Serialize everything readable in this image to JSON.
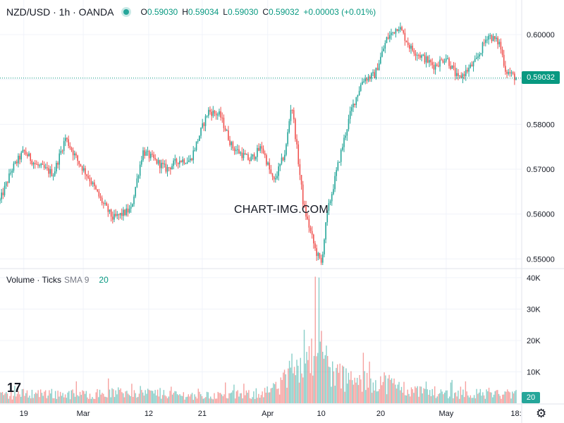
{
  "header": {
    "symbol": "NZD/USD · 1h · OANDA",
    "o_label": "O",
    "o_value": "0.59030",
    "h_label": "H",
    "h_value": "0.59034",
    "l_label": "L",
    "l_value": "0.59030",
    "c_label": "C",
    "c_value": "0.59032",
    "change": "+0.00003 (+0.01%)"
  },
  "volume_header": {
    "title": "Volume · Ticks",
    "sma_label": "SMA 9",
    "sma_value": "20"
  },
  "watermark": "CHART-IMG.COM",
  "logo": "17",
  "gear_icon": "gear-icon",
  "colors": {
    "up": "#26a69a",
    "down": "#ef5350",
    "line": "#089981",
    "grid": "#f0f3fa",
    "axis_text": "#131722"
  },
  "chart_data": [
    {
      "type": "candlestick",
      "title": "NZD/USD · 1h · OANDA",
      "ylim": [
        0.548,
        0.603
      ],
      "y_ticks": [
        {
          "value": 0.6,
          "label": "0.60000"
        },
        {
          "value": 0.59,
          "label": "0.59000"
        },
        {
          "value": 0.58,
          "label": "0.58000"
        },
        {
          "value": 0.57,
          "label": "0.57000"
        },
        {
          "value": 0.56,
          "label": "0.56000"
        },
        {
          "value": 0.55,
          "label": "0.55000"
        }
      ],
      "x_ticks": [
        {
          "date": "2025-02-19",
          "label": "19"
        },
        {
          "date": "2025-03-01",
          "label": "Mar"
        },
        {
          "date": "2025-03-12",
          "label": "12"
        },
        {
          "date": "2025-03-21",
          "label": "21"
        },
        {
          "date": "2025-04-01",
          "label": "Apr"
        },
        {
          "date": "2025-04-10",
          "label": "10"
        },
        {
          "date": "2025-04-20",
          "label": "20"
        },
        {
          "date": "2025-05-01",
          "label": "May"
        },
        {
          "date": "2025-05-12 18:00",
          "label": "18:"
        }
      ],
      "x_range": [
        "2025-02-15",
        "2025-05-12 18:00"
      ],
      "last_price": "0.59032",
      "last_price_value": 0.59032,
      "series": [
        {
          "close_path": [
            [
              "2025-02-15",
              0.563
            ],
            [
              "2025-02-17",
              0.57
            ],
            [
              "2025-02-19",
              0.574
            ],
            [
              "2025-02-21",
              0.571
            ],
            [
              "2025-02-24",
              0.569
            ],
            [
              "2025-02-26",
              0.577
            ],
            [
              "2025-02-28",
              0.572
            ],
            [
              "2025-03-02",
              0.568
            ],
            [
              "2025-03-04",
              0.563
            ],
            [
              "2025-03-06",
              0.559
            ],
            [
              "2025-03-09",
              0.561
            ],
            [
              "2025-03-11",
              0.574
            ],
            [
              "2025-03-13",
              0.572
            ],
            [
              "2025-03-15",
              0.57
            ],
            [
              "2025-03-17",
              0.572
            ],
            [
              "2025-03-19",
              0.572
            ],
            [
              "2025-03-22",
              0.583
            ],
            [
              "2025-03-24",
              0.582
            ],
            [
              "2025-03-26",
              0.575
            ],
            [
              "2025-03-29",
              0.572
            ],
            [
              "2025-03-31",
              0.575
            ],
            [
              "2025-04-02",
              0.567
            ],
            [
              "2025-04-04",
              0.574
            ],
            [
              "2025-04-05",
              0.585
            ],
            [
              "2025-04-07",
              0.562
            ],
            [
              "2025-04-09",
              0.552
            ],
            [
              "2025-04-10",
              0.549
            ],
            [
              "2025-04-11",
              0.56
            ],
            [
              "2025-04-13",
              0.572
            ],
            [
              "2025-04-15",
              0.583
            ],
            [
              "2025-04-17",
              0.59
            ],
            [
              "2025-04-19",
              0.591
            ],
            [
              "2025-04-21",
              0.599
            ],
            [
              "2025-04-23",
              0.602
            ],
            [
              "2025-04-25",
              0.597
            ],
            [
              "2025-04-27",
              0.595
            ],
            [
              "2025-04-29",
              0.593
            ],
            [
              "2025-05-01",
              0.595
            ],
            [
              "2025-05-03",
              0.59
            ],
            [
              "2025-05-06",
              0.594
            ],
            [
              "2025-05-08",
              0.6
            ],
            [
              "2025-05-10",
              0.598
            ],
            [
              "2025-05-11",
              0.592
            ],
            [
              "2025-05-12 18:00",
              0.59032
            ]
          ]
        }
      ]
    },
    {
      "type": "bar",
      "title": "Volume · Ticks",
      "ylim": [
        0,
        42000
      ],
      "y_ticks": [
        {
          "value": 40000,
          "label": "40K"
        },
        {
          "value": 30000,
          "label": "30K"
        },
        {
          "value": 20000,
          "label": "20K"
        },
        {
          "value": 10000,
          "label": "10K"
        }
      ],
      "last_value": "20",
      "series": [
        {
          "level_path": [
            [
              "2025-02-15",
              3000
            ],
            [
              "2025-02-20",
              4000
            ],
            [
              "2025-03-01",
              3500
            ],
            [
              "2025-03-10",
              4500
            ],
            [
              "2025-03-20",
              3000
            ],
            [
              "2025-03-30",
              3500
            ],
            [
              "2025-04-03",
              6000
            ],
            [
              "2025-04-07",
              20000
            ],
            [
              "2025-04-09",
              25000
            ],
            [
              "2025-04-12",
              12000
            ],
            [
              "2025-04-16",
              8000
            ],
            [
              "2025-04-20",
              9000
            ],
            [
              "2025-04-25",
              5000
            ],
            [
              "2025-05-01",
              4000
            ],
            [
              "2025-05-12 18:00",
              3500
            ]
          ]
        }
      ]
    }
  ]
}
